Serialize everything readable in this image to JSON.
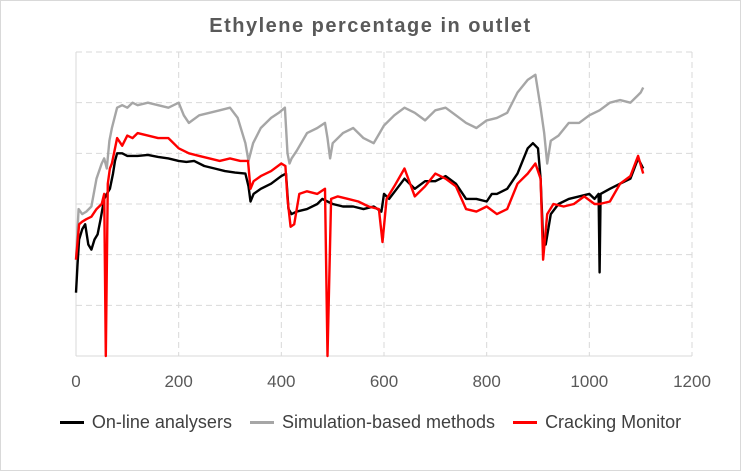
{
  "chart_data": {
    "type": "line",
    "title": "Ethylene percentage in outlet",
    "xlabel": "",
    "ylabel": "",
    "xlim": [
      0,
      1200
    ],
    "ylim": [
      0,
      6
    ],
    "x_ticks": [
      "0",
      "200",
      "400",
      "600",
      "800",
      "1000",
      "1200"
    ],
    "y_ticks_shown": false,
    "grid": "dashed vertical and horizontal",
    "legend_position": "bottom",
    "series": [
      {
        "name": "On-line analysers",
        "color": "#000000",
        "points": [
          [
            0,
            1.25
          ],
          [
            3,
            1.8
          ],
          [
            6,
            2.3
          ],
          [
            12,
            2.5
          ],
          [
            18,
            2.6
          ],
          [
            24,
            2.2
          ],
          [
            30,
            2.1
          ],
          [
            36,
            2.3
          ],
          [
            42,
            2.4
          ],
          [
            48,
            2.7
          ],
          [
            55,
            3.1
          ],
          [
            60,
            3.2
          ],
          [
            66,
            3.3
          ],
          [
            72,
            3.6
          ],
          [
            76,
            3.85
          ],
          [
            80,
            4.0
          ],
          [
            90,
            4.0
          ],
          [
            100,
            3.95
          ],
          [
            110,
            3.95
          ],
          [
            120,
            3.95
          ],
          [
            140,
            3.97
          ],
          [
            160,
            3.93
          ],
          [
            180,
            3.9
          ],
          [
            200,
            3.85
          ],
          [
            215,
            3.83
          ],
          [
            230,
            3.85
          ],
          [
            250,
            3.75
          ],
          [
            270,
            3.7
          ],
          [
            290,
            3.65
          ],
          [
            310,
            3.62
          ],
          [
            330,
            3.6
          ],
          [
            336,
            3.35
          ],
          [
            340,
            3.05
          ],
          [
            346,
            3.2
          ],
          [
            360,
            3.3
          ],
          [
            380,
            3.4
          ],
          [
            400,
            3.55
          ],
          [
            409,
            3.6
          ],
          [
            414,
            2.9
          ],
          [
            420,
            2.8
          ],
          [
            430,
            2.85
          ],
          [
            450,
            2.9
          ],
          [
            470,
            3.0
          ],
          [
            480,
            3.1
          ],
          [
            490,
            3.05
          ],
          [
            500,
            3.0
          ],
          [
            520,
            2.95
          ],
          [
            540,
            2.95
          ],
          [
            560,
            2.9
          ],
          [
            580,
            2.95
          ],
          [
            595,
            2.85
          ],
          [
            600,
            3.2
          ],
          [
            610,
            3.1
          ],
          [
            625,
            3.3
          ],
          [
            640,
            3.5
          ],
          [
            660,
            3.3
          ],
          [
            680,
            3.45
          ],
          [
            700,
            3.45
          ],
          [
            720,
            3.55
          ],
          [
            740,
            3.4
          ],
          [
            760,
            3.1
          ],
          [
            780,
            3.1
          ],
          [
            800,
            3.05
          ],
          [
            810,
            3.2
          ],
          [
            820,
            3.2
          ],
          [
            840,
            3.3
          ],
          [
            860,
            3.6
          ],
          [
            870,
            3.85
          ],
          [
            880,
            4.1
          ],
          [
            890,
            4.2
          ],
          [
            900,
            4.1
          ],
          [
            905,
            3.5
          ],
          [
            910,
            2.3
          ],
          [
            915,
            2.2
          ],
          [
            925,
            2.8
          ],
          [
            940,
            3.0
          ],
          [
            960,
            3.1
          ],
          [
            980,
            3.15
          ],
          [
            1000,
            3.2
          ],
          [
            1010,
            3.1
          ],
          [
            1018,
            3.2
          ],
          [
            1020,
            1.65
          ],
          [
            1022,
            3.2
          ],
          [
            1040,
            3.3
          ],
          [
            1060,
            3.4
          ],
          [
            1080,
            3.5
          ],
          [
            1095,
            3.9
          ],
          [
            1105,
            3.7
          ]
        ]
      },
      {
        "name": "Simulation-based methods",
        "color": "#a6a6a6",
        "points": [
          [
            0,
            1.9
          ],
          [
            5,
            2.9
          ],
          [
            12,
            2.8
          ],
          [
            20,
            2.85
          ],
          [
            30,
            2.95
          ],
          [
            40,
            3.5
          ],
          [
            50,
            3.8
          ],
          [
            55,
            3.9
          ],
          [
            60,
            3.7
          ],
          [
            65,
            4.25
          ],
          [
            70,
            4.5
          ],
          [
            80,
            4.9
          ],
          [
            90,
            4.95
          ],
          [
            100,
            4.9
          ],
          [
            110,
            5.0
          ],
          [
            120,
            4.95
          ],
          [
            140,
            5.0
          ],
          [
            160,
            4.95
          ],
          [
            180,
            4.9
          ],
          [
            200,
            5.0
          ],
          [
            210,
            4.75
          ],
          [
            220,
            4.6
          ],
          [
            240,
            4.75
          ],
          [
            260,
            4.8
          ],
          [
            280,
            4.85
          ],
          [
            300,
            4.9
          ],
          [
            315,
            4.7
          ],
          [
            330,
            4.2
          ],
          [
            336,
            3.85
          ],
          [
            345,
            4.2
          ],
          [
            360,
            4.5
          ],
          [
            380,
            4.7
          ],
          [
            395,
            4.8
          ],
          [
            407,
            4.9
          ],
          [
            412,
            4.0
          ],
          [
            416,
            3.8
          ],
          [
            420,
            3.9
          ],
          [
            430,
            4.05
          ],
          [
            450,
            4.4
          ],
          [
            470,
            4.5
          ],
          [
            485,
            4.6
          ],
          [
            490,
            4.3
          ],
          [
            495,
            3.9
          ],
          [
            500,
            4.2
          ],
          [
            520,
            4.4
          ],
          [
            540,
            4.5
          ],
          [
            560,
            4.3
          ],
          [
            580,
            4.2
          ],
          [
            600,
            4.55
          ],
          [
            620,
            4.75
          ],
          [
            640,
            4.9
          ],
          [
            660,
            4.8
          ],
          [
            680,
            4.65
          ],
          [
            700,
            4.85
          ],
          [
            720,
            4.9
          ],
          [
            740,
            4.75
          ],
          [
            760,
            4.6
          ],
          [
            780,
            4.5
          ],
          [
            800,
            4.65
          ],
          [
            820,
            4.7
          ],
          [
            840,
            4.8
          ],
          [
            860,
            5.2
          ],
          [
            880,
            5.45
          ],
          [
            895,
            5.55
          ],
          [
            905,
            4.9
          ],
          [
            912,
            4.4
          ],
          [
            918,
            3.8
          ],
          [
            925,
            4.25
          ],
          [
            940,
            4.35
          ],
          [
            960,
            4.6
          ],
          [
            980,
            4.6
          ],
          [
            1000,
            4.75
          ],
          [
            1020,
            4.85
          ],
          [
            1040,
            5.0
          ],
          [
            1060,
            5.05
          ],
          [
            1080,
            5.0
          ],
          [
            1095,
            5.15
          ],
          [
            1100,
            5.2
          ],
          [
            1105,
            5.3
          ]
        ]
      },
      {
        "name": "Cracking Monitor",
        "color": "#ff0000",
        "points": [
          [
            0,
            1.9
          ],
          [
            6,
            2.6
          ],
          [
            12,
            2.65
          ],
          [
            20,
            2.7
          ],
          [
            30,
            2.75
          ],
          [
            40,
            2.9
          ],
          [
            50,
            3.0
          ],
          [
            55,
            3.2
          ],
          [
            58,
            0.0
          ],
          [
            62,
            3.4
          ],
          [
            66,
            3.7
          ],
          [
            70,
            3.8
          ],
          [
            80,
            4.3
          ],
          [
            90,
            4.15
          ],
          [
            100,
            4.35
          ],
          [
            110,
            4.3
          ],
          [
            120,
            4.4
          ],
          [
            140,
            4.35
          ],
          [
            160,
            4.3
          ],
          [
            180,
            4.3
          ],
          [
            200,
            4.1
          ],
          [
            220,
            4.0
          ],
          [
            240,
            3.95
          ],
          [
            260,
            3.9
          ],
          [
            280,
            3.85
          ],
          [
            300,
            3.9
          ],
          [
            320,
            3.85
          ],
          [
            335,
            3.85
          ],
          [
            340,
            3.3
          ],
          [
            346,
            3.45
          ],
          [
            360,
            3.55
          ],
          [
            380,
            3.65
          ],
          [
            400,
            3.8
          ],
          [
            408,
            3.75
          ],
          [
            412,
            3.1
          ],
          [
            418,
            2.55
          ],
          [
            425,
            2.6
          ],
          [
            435,
            3.2
          ],
          [
            450,
            3.25
          ],
          [
            470,
            3.2
          ],
          [
            485,
            3.3
          ],
          [
            490,
            0.0
          ],
          [
            497,
            3.1
          ],
          [
            510,
            3.15
          ],
          [
            530,
            3.1
          ],
          [
            550,
            3.05
          ],
          [
            570,
            2.95
          ],
          [
            590,
            2.9
          ],
          [
            597,
            2.25
          ],
          [
            605,
            3.1
          ],
          [
            620,
            3.35
          ],
          [
            640,
            3.7
          ],
          [
            660,
            3.15
          ],
          [
            680,
            3.35
          ],
          [
            700,
            3.6
          ],
          [
            720,
            3.5
          ],
          [
            740,
            3.35
          ],
          [
            760,
            2.9
          ],
          [
            780,
            2.85
          ],
          [
            800,
            2.95
          ],
          [
            820,
            2.8
          ],
          [
            840,
            2.9
          ],
          [
            860,
            3.4
          ],
          [
            880,
            3.6
          ],
          [
            895,
            3.8
          ],
          [
            905,
            3.5
          ],
          [
            910,
            1.9
          ],
          [
            918,
            2.8
          ],
          [
            930,
            3.0
          ],
          [
            950,
            2.95
          ],
          [
            970,
            3.0
          ],
          [
            990,
            3.15
          ],
          [
            1010,
            3.0
          ],
          [
            1020,
            3.0
          ],
          [
            1040,
            3.05
          ],
          [
            1060,
            3.4
          ],
          [
            1080,
            3.55
          ],
          [
            1095,
            3.95
          ],
          [
            1105,
            3.6
          ]
        ]
      }
    ]
  }
}
